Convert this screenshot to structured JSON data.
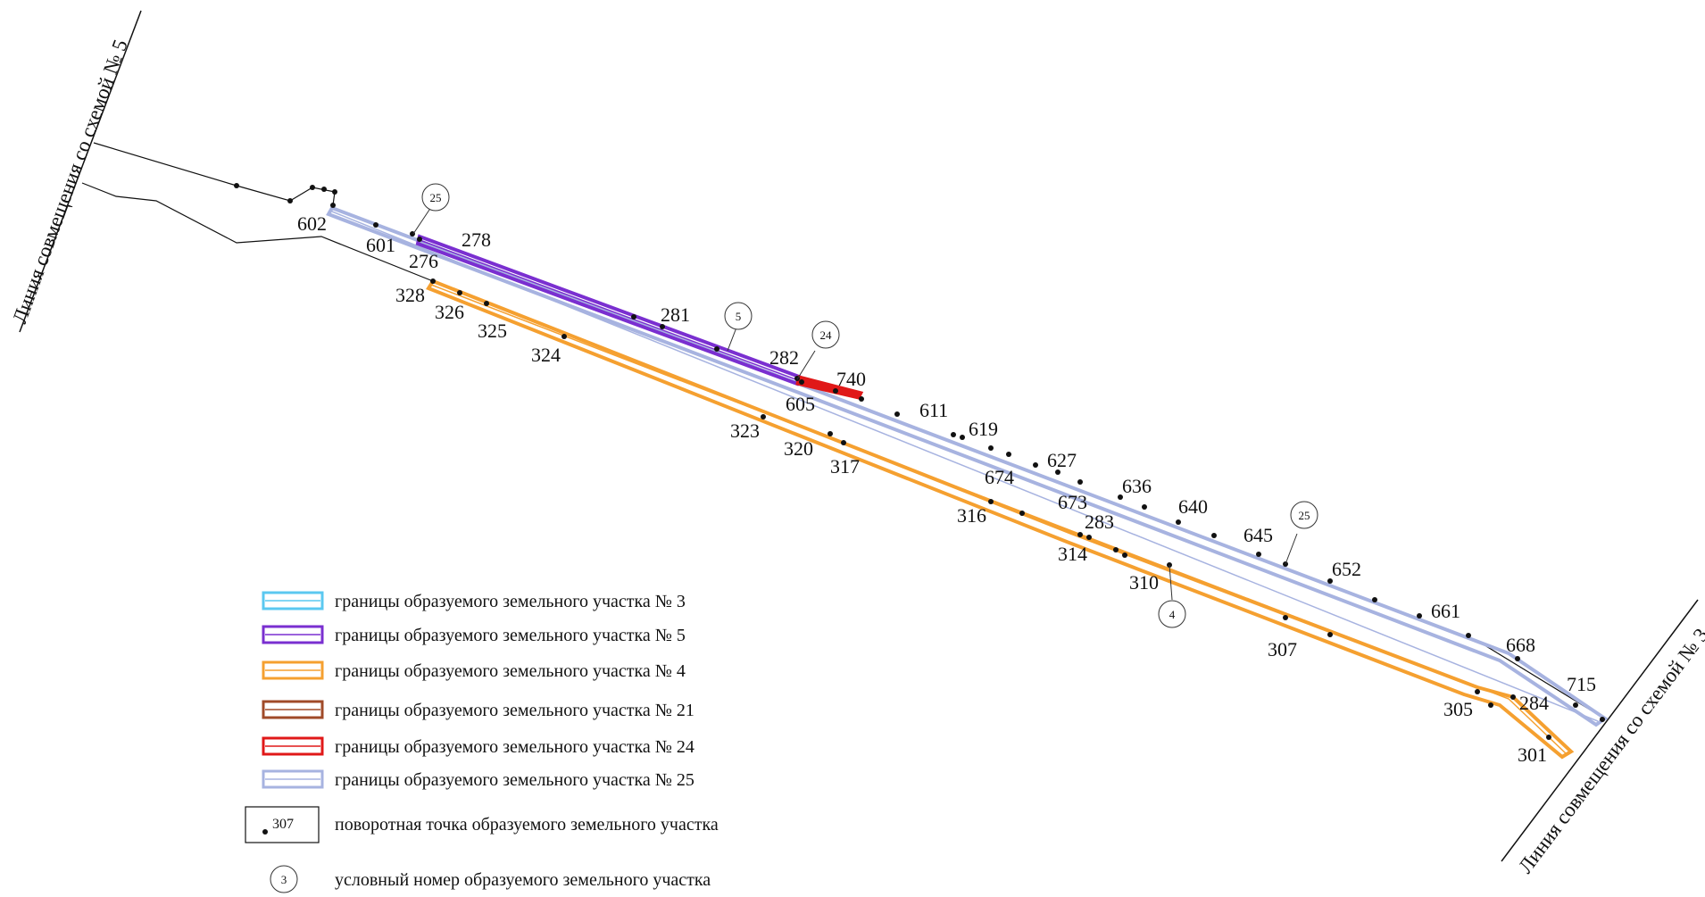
{
  "colors": {
    "plot3": "#5bc8f0",
    "plot5": "#7a2fd0",
    "plot4": "#f5a030",
    "plot21": "#a04a28",
    "plot24": "#e01818",
    "plot25": "#a7b3e0",
    "line": "#111111"
  },
  "combination_lines": {
    "left": "Линия совмещения со схемой № 5",
    "right": "Линия совмещения со схемой № 3"
  },
  "point_labels": {
    "p602": "602",
    "p601": "601",
    "p276": "276",
    "p278": "278",
    "p328": "328",
    "p326": "326",
    "p325": "325",
    "p324": "324",
    "p281": "281",
    "p282": "282",
    "p740": "740",
    "p605": "605",
    "p611": "611",
    "p619": "619",
    "p323": "323",
    "p320": "320",
    "p317": "317",
    "p627": "627",
    "p674": "674",
    "p636": "636",
    "p673": "673",
    "p316": "316",
    "p283": "283",
    "p640": "640",
    "p645": "645",
    "p314": "314",
    "p652": "652",
    "p310": "310",
    "p661": "661",
    "p307": "307",
    "p668": "668",
    "p715": "715",
    "p305": "305",
    "p284": "284",
    "p301": "301"
  },
  "plot_numbers": {
    "c25a": "25",
    "c5": "5",
    "c24": "24",
    "c25b": "25",
    "c4": "4"
  },
  "legend": {
    "items": [
      {
        "label": "границы образуемого земельного участка № 3",
        "color": "plot3"
      },
      {
        "label": "границы образуемого земельного участка № 5",
        "color": "plot5"
      },
      {
        "label": "границы образуемого земельного участка № 4",
        "color": "plot4"
      },
      {
        "label": "границы образуемого земельного участка № 21",
        "color": "plot21"
      },
      {
        "label": "границы образуемого земельного участка № 24",
        "color": "plot24"
      },
      {
        "label": "границы образуемого земельного участка № 25",
        "color": "plot25"
      }
    ],
    "point_sample": "307",
    "point_label": "поворотная точка образуемого земельного участка",
    "circle_sample": "3",
    "circle_label": "условный номер образуемого земельного участка"
  }
}
